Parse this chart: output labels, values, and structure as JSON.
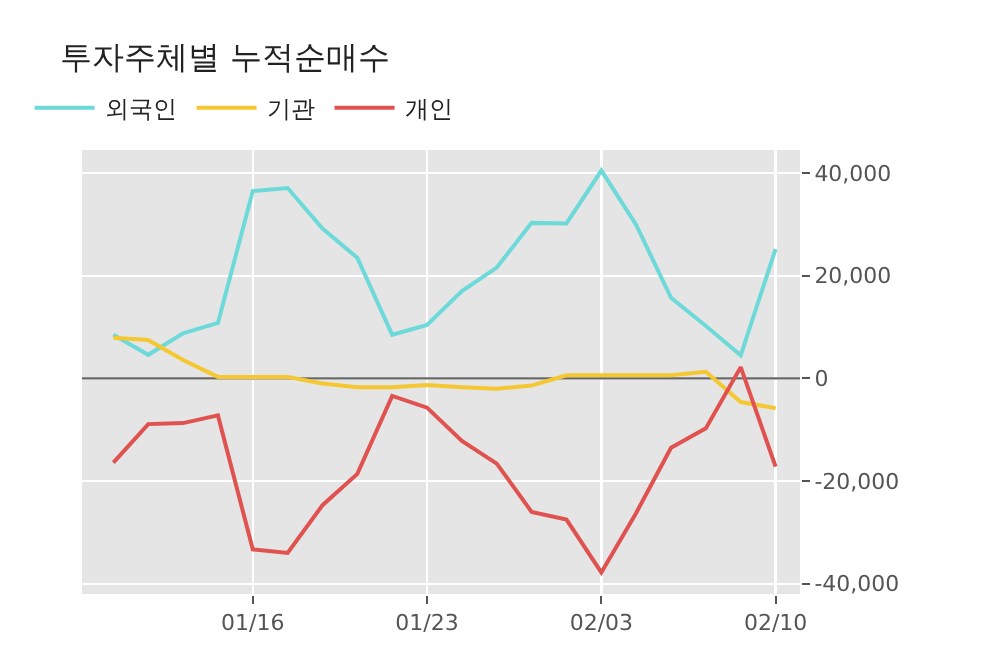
{
  "chart_data": {
    "type": "line",
    "title": "투자주체별 누적순매수",
    "categories": [
      null,
      null,
      null,
      null,
      "01/16",
      null,
      null,
      null,
      null,
      "01/23",
      null,
      null,
      null,
      null,
      "02/03",
      null,
      null,
      null,
      null,
      "02/10"
    ],
    "series": [
      {
        "name": "외국인",
        "color": "#6dd9d9",
        "values": [
          8500,
          4600,
          8800,
          10800,
          36500,
          37100,
          29200,
          23500,
          8500,
          10400,
          17000,
          21600,
          30300,
          30200,
          40500,
          29900,
          15700,
          10200,
          4500,
          25200
        ]
      },
      {
        "name": "기관",
        "color": "#f5c832",
        "values": [
          7900,
          7500,
          3600,
          300,
          300,
          300,
          -1000,
          -1700,
          -1700,
          -1300,
          -1700,
          -2000,
          -1400,
          600,
          600,
          600,
          600,
          1300,
          -4600,
          -5800
        ]
      },
      {
        "name": "개인",
        "color": "#e0524f",
        "values": [
          -16400,
          -8900,
          -8700,
          -7200,
          -33300,
          -34000,
          -24700,
          -18600,
          -3400,
          -5700,
          -12200,
          -16600,
          -26000,
          -27500,
          -37800,
          -26200,
          -13500,
          -9700,
          2200,
          -17200
        ]
      }
    ],
    "ylim": [
      -42000,
      44500
    ],
    "yticks": [
      {
        "value": -40000,
        "label": "-40,000"
      },
      {
        "value": -20000,
        "label": "-20,000"
      },
      0,
      {
        "value": 20000,
        "label": "20,000"
      },
      {
        "value": 40000,
        "label": "40,000"
      }
    ],
    "ref_lines": [
      {
        "axis": "y",
        "value": 0,
        "color": "#666666"
      }
    ],
    "grid": true,
    "legend": "top left",
    "marker": "none",
    "line_style": "solid"
  }
}
